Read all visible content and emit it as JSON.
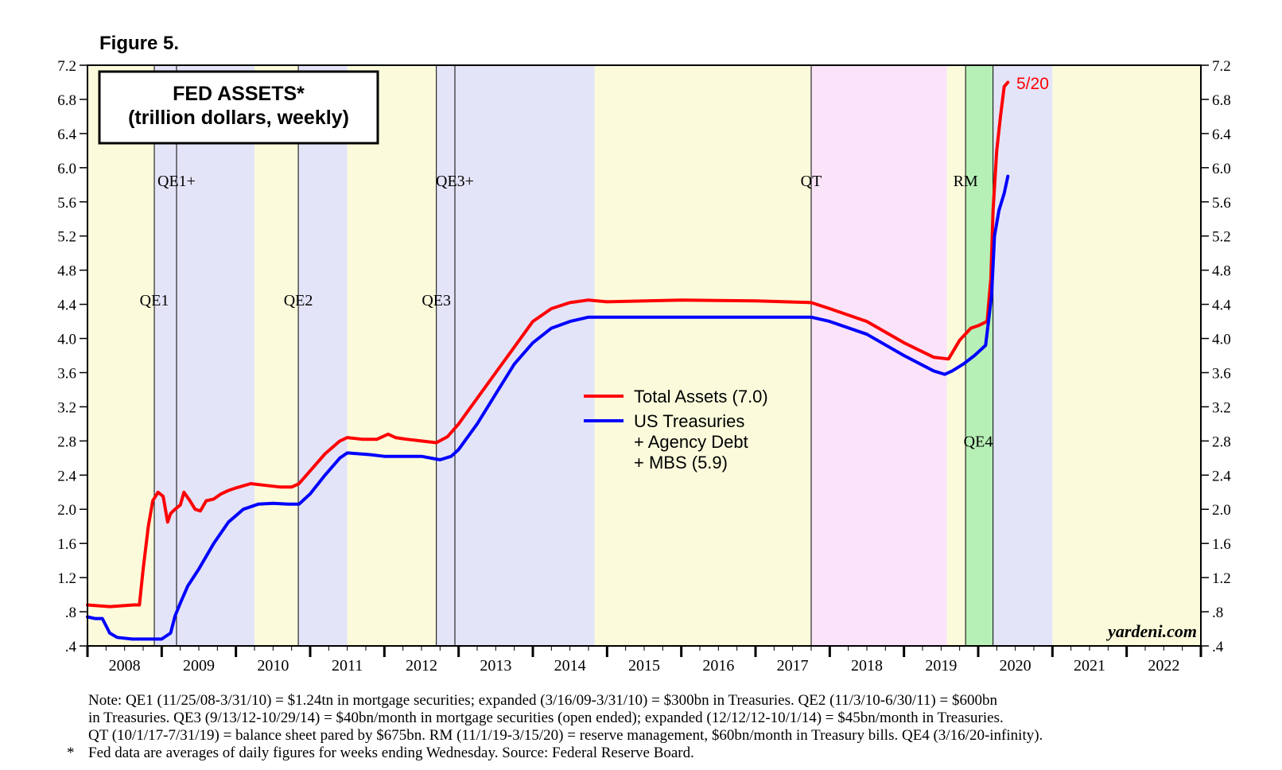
{
  "figure_label": "Figure 5.",
  "chart_data": {
    "type": "line",
    "title": "FED ASSETS*",
    "subtitle": "(trillion dollars, weekly)",
    "xlabel": "",
    "ylabel": "",
    "x_range": [
      2008.0,
      2023.0
    ],
    "ylim": [
      0.4,
      7.2
    ],
    "y_ticks": [
      0.4,
      0.8,
      1.2,
      1.6,
      2.0,
      2.4,
      2.8,
      3.2,
      3.6,
      4.0,
      4.4,
      4.8,
      5.2,
      5.6,
      6.0,
      6.4,
      6.8,
      7.2
    ],
    "y_tick_labels": [
      ".4",
      ".8",
      "1.2",
      "1.6",
      "2.0",
      "2.4",
      "2.8",
      "3.2",
      "3.6",
      "4.0",
      "4.4",
      "4.8",
      "5.2",
      "5.6",
      "6.0",
      "6.4",
      "6.8",
      "7.2"
    ],
    "x_tick_labels": [
      "2008",
      "2009",
      "2010",
      "2011",
      "2012",
      "2013",
      "2014",
      "2015",
      "2016",
      "2017",
      "2018",
      "2019",
      "2020",
      "2021",
      "2022"
    ],
    "background_bands": [
      {
        "from": 2008.0,
        "to": 2008.9,
        "color": "#fbfbdc"
      },
      {
        "from": 2008.9,
        "to": 2010.25,
        "color": "#e4e4f9"
      },
      {
        "from": 2010.25,
        "to": 2010.84,
        "color": "#fbfbdc"
      },
      {
        "from": 2010.84,
        "to": 2011.5,
        "color": "#e4e4f9"
      },
      {
        "from": 2011.5,
        "to": 2012.7,
        "color": "#fbfbdc"
      },
      {
        "from": 2012.7,
        "to": 2014.83,
        "color": "#e4e4f9"
      },
      {
        "from": 2014.83,
        "to": 2017.75,
        "color": "#fbfbdc"
      },
      {
        "from": 2017.75,
        "to": 2019.58,
        "color": "#fbe4f9"
      },
      {
        "from": 2019.58,
        "to": 2019.83,
        "color": "#fbfbdc"
      },
      {
        "from": 2019.83,
        "to": 2020.2,
        "color": "#b7f0b7"
      },
      {
        "from": 2020.2,
        "to": 2021.0,
        "color": "#e4e4f9"
      },
      {
        "from": 2021.0,
        "to": 2023.0,
        "color": "#fbfbdc"
      }
    ],
    "event_lines": [
      {
        "x": 2008.9,
        "label": "QE1",
        "label_y": 4.45
      },
      {
        "x": 2009.2,
        "label": "QE1+",
        "label_y": 5.85
      },
      {
        "x": 2010.84,
        "label": "QE2",
        "label_y": 4.45
      },
      {
        "x": 2012.7,
        "label": "QE3",
        "label_y": 4.45
      },
      {
        "x": 2012.95,
        "label": "QE3+",
        "label_y": 5.85
      },
      {
        "x": 2017.75,
        "label": "QT",
        "label_y": 5.85
      },
      {
        "x": 2019.83,
        "label": "RM",
        "label_y": 5.85
      },
      {
        "x": 2020.2,
        "label": "",
        "label_y": 0
      }
    ],
    "band_labels": [
      {
        "x": 2020.0,
        "y": 2.8,
        "label": "QE4"
      }
    ],
    "series": [
      {
        "name": "Total Assets (7.0)",
        "color": "#ff0000",
        "x": [
          2008.0,
          2008.3,
          2008.62,
          2008.7,
          2008.75,
          2008.82,
          2008.88,
          2008.95,
          2009.02,
          2009.08,
          2009.12,
          2009.18,
          2009.25,
          2009.3,
          2009.38,
          2009.45,
          2009.52,
          2009.6,
          2009.7,
          2009.8,
          2009.9,
          2010.0,
          2010.2,
          2010.4,
          2010.6,
          2010.75,
          2010.85,
          2011.0,
          2011.2,
          2011.4,
          2011.5,
          2011.7,
          2011.9,
          2012.05,
          2012.15,
          2012.3,
          2012.5,
          2012.7,
          2012.85,
          2013.0,
          2013.25,
          2013.5,
          2013.75,
          2014.0,
          2014.25,
          2014.5,
          2014.75,
          2015.0,
          2016.0,
          2017.0,
          2017.75,
          2018.0,
          2018.5,
          2019.0,
          2019.4,
          2019.6,
          2019.75,
          2019.9,
          2020.0,
          2020.12,
          2020.17,
          2020.2,
          2020.25,
          2020.3,
          2020.35,
          2020.4
        ],
        "values": [
          0.88,
          0.86,
          0.88,
          0.88,
          1.3,
          1.8,
          2.1,
          2.2,
          2.15,
          1.85,
          1.95,
          2.0,
          2.05,
          2.2,
          2.1,
          2.0,
          1.98,
          2.1,
          2.12,
          2.18,
          2.22,
          2.25,
          2.3,
          2.28,
          2.26,
          2.26,
          2.3,
          2.45,
          2.65,
          2.8,
          2.84,
          2.82,
          2.82,
          2.88,
          2.84,
          2.82,
          2.8,
          2.78,
          2.85,
          3.0,
          3.3,
          3.6,
          3.9,
          4.2,
          4.35,
          4.42,
          4.45,
          4.43,
          4.45,
          4.44,
          4.42,
          4.35,
          4.2,
          3.95,
          3.78,
          3.76,
          3.98,
          4.12,
          4.15,
          4.2,
          4.7,
          5.5,
          6.2,
          6.6,
          6.95,
          7.0
        ]
      },
      {
        "name": "US Treasuries + Agency Debt + MBS (5.9)",
        "color": "#0000ff",
        "x": [
          2008.0,
          2008.1,
          2008.2,
          2008.3,
          2008.4,
          2008.6,
          2008.8,
          2009.0,
          2009.12,
          2009.18,
          2009.25,
          2009.35,
          2009.5,
          2009.7,
          2009.9,
          2010.1,
          2010.3,
          2010.5,
          2010.7,
          2010.85,
          2011.0,
          2011.2,
          2011.4,
          2011.5,
          2011.8,
          2012.0,
          2012.2,
          2012.5,
          2012.75,
          2012.9,
          2013.0,
          2013.25,
          2013.5,
          2013.75,
          2014.0,
          2014.25,
          2014.5,
          2014.75,
          2015.0,
          2016.0,
          2017.0,
          2017.75,
          2018.0,
          2018.5,
          2019.0,
          2019.4,
          2019.55,
          2019.65,
          2019.8,
          2019.95,
          2020.1,
          2020.18,
          2020.22,
          2020.28,
          2020.35,
          2020.4
        ],
        "values": [
          0.74,
          0.72,
          0.72,
          0.55,
          0.5,
          0.48,
          0.48,
          0.48,
          0.55,
          0.75,
          0.9,
          1.1,
          1.3,
          1.6,
          1.85,
          2.0,
          2.06,
          2.07,
          2.06,
          2.06,
          2.18,
          2.4,
          2.6,
          2.66,
          2.64,
          2.62,
          2.62,
          2.62,
          2.58,
          2.62,
          2.7,
          3.0,
          3.35,
          3.7,
          3.95,
          4.12,
          4.2,
          4.25,
          4.25,
          4.25,
          4.25,
          4.25,
          4.2,
          4.05,
          3.8,
          3.62,
          3.58,
          3.62,
          3.7,
          3.8,
          3.92,
          4.5,
          5.2,
          5.5,
          5.7,
          5.9
        ]
      }
    ],
    "legend": [
      "Total Assets (7.0)",
      "US Treasuries",
      "+ Agency Debt",
      "+ MBS (5.9)"
    ],
    "end_label": "5/20",
    "watermark": "yardeni.com"
  },
  "notes": {
    "line1": "Note: QE1 (11/25/08-3/31/10) = $1.24tn in mortgage securities; expanded (3/16/09-3/31/10) = $300bn in Treasuries. QE2 (11/3/10-6/30/11) = $600bn",
    "line2": "in Treasuries. QE3 (9/13/12-10/29/14) = $40bn/month in mortgage securities (open ended); expanded (12/12/12-10/1/14) = $45bn/month in Treasuries.",
    "line3": "QT (10/1/17-7/31/19) = balance sheet pared by $675bn. RM (11/1/19-3/15/20) = reserve management, $60bn/month in Treasury bills. QE4 (3/16/20-infinity).",
    "star": "*",
    "line4": "Fed data are averages of daily figures for weeks ending Wednesday. Source: Federal Reserve Board."
  }
}
